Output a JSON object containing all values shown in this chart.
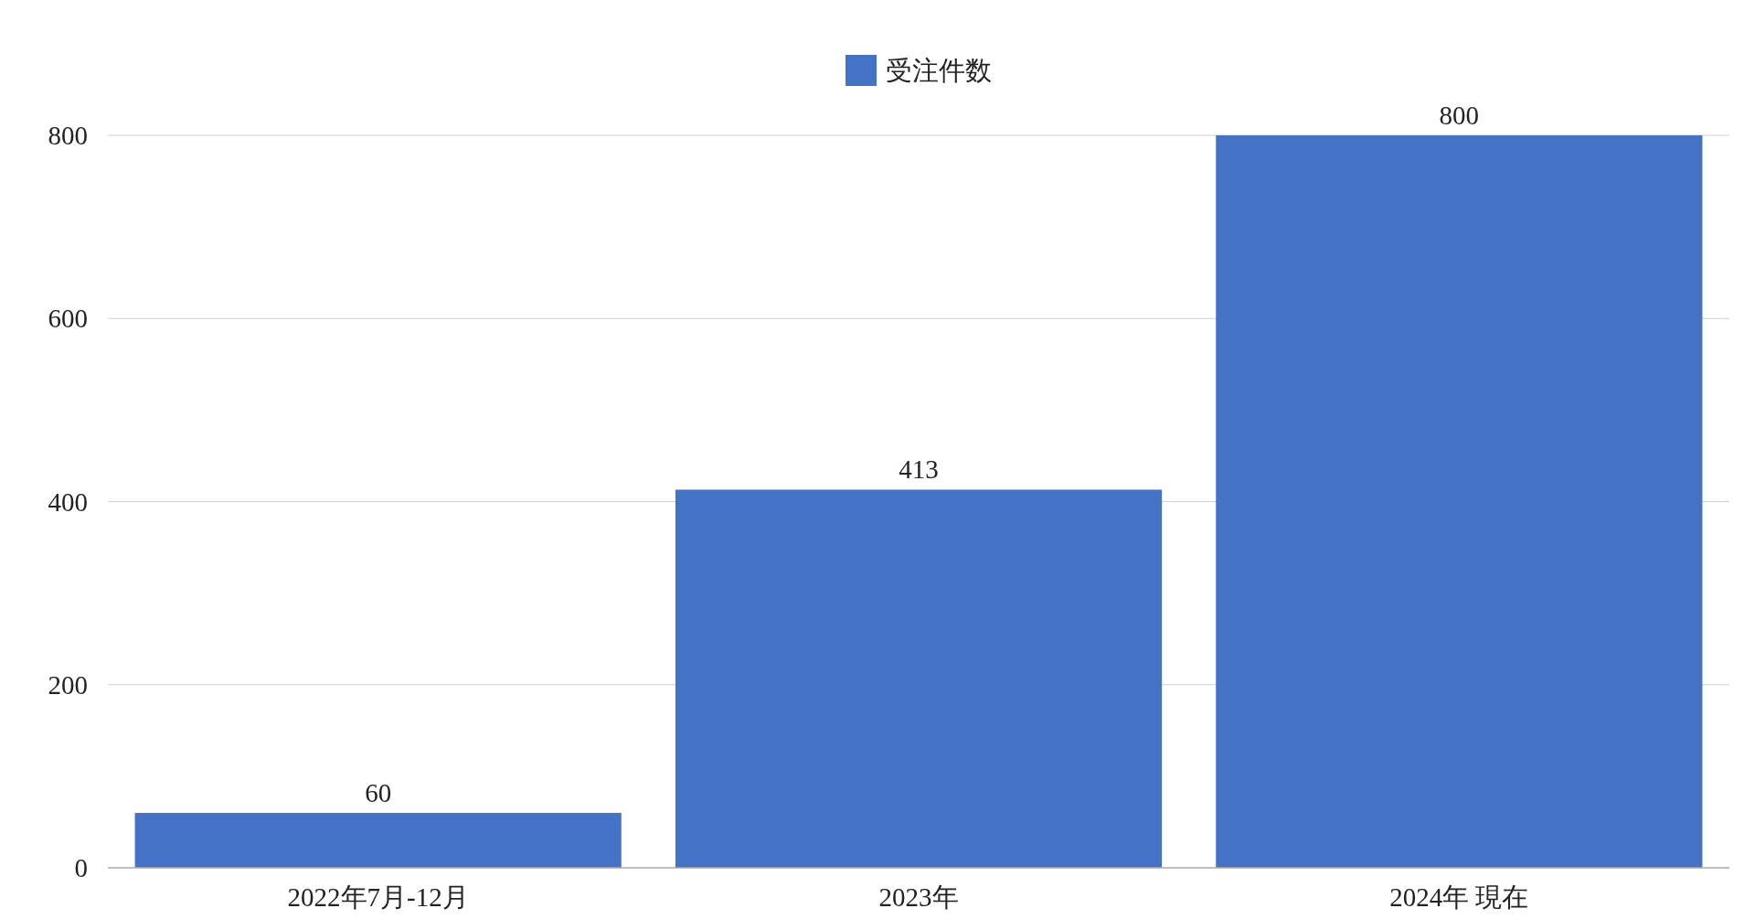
{
  "chart_data": {
    "type": "bar",
    "categories": [
      "2022年7月-12月",
      "2023年",
      "2024年 現在"
    ],
    "series": [
      {
        "name": "受注件数",
        "color": "#4472c4",
        "values": [
          60,
          413,
          800
        ]
      }
    ],
    "ylim": [
      0,
      800
    ],
    "yticks": [
      0,
      200,
      400,
      600,
      800
    ],
    "grid": "y",
    "legend": "top",
    "data_labels": true
  }
}
